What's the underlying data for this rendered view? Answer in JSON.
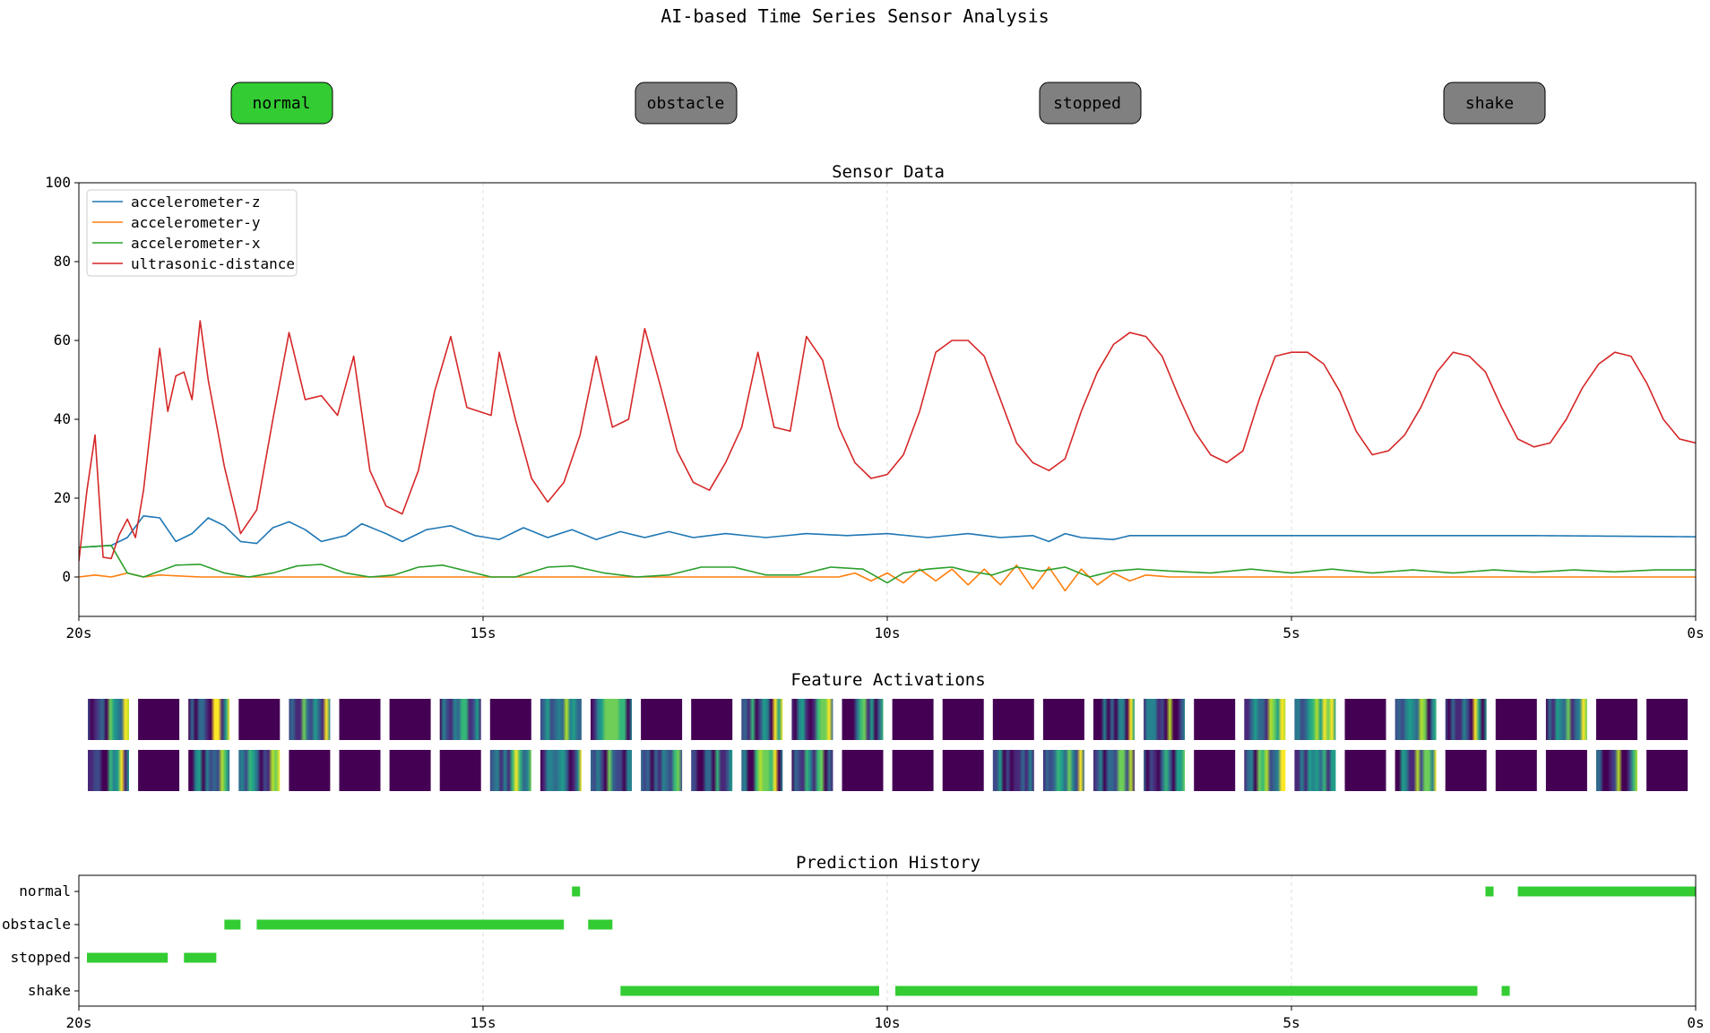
{
  "title": "AI-based Time Series Sensor Analysis",
  "buttons": [
    {
      "label": "normal",
      "active": true
    },
    {
      "label": "obstacle",
      "active": false
    },
    {
      "label": "stopped",
      "active": false
    },
    {
      "label": "shake",
      "active": false
    }
  ],
  "colors": {
    "active": "#33cc33",
    "inactive": "#808080",
    "series": [
      "#1f77b4",
      "#ff7f0e",
      "#2ca02c",
      "#d62728"
    ],
    "bar": "#33cc33"
  },
  "chart_data": [
    {
      "type": "line",
      "title": "Sensor Data",
      "xlabel": "",
      "ylabel": "",
      "xlim": [
        -20,
        0
      ],
      "ylim": [
        -10,
        100
      ],
      "x_tick_labels": [
        "20s",
        "15s",
        "10s",
        "5s",
        "0s"
      ],
      "y_tick_labels": [
        "0",
        "20",
        "40",
        "60",
        "80",
        "100"
      ],
      "y_ticks": [
        0,
        20,
        40,
        60,
        80,
        100
      ],
      "grid": "x",
      "legend": "top-left",
      "sample_step_s": 0.1,
      "series": [
        {
          "name": "accelerometer-z",
          "anchors": [
            [
              -20,
              7.5
            ],
            [
              -19.6,
              8
            ],
            [
              -19.4,
              10
            ],
            [
              -19.2,
              15.5
            ],
            [
              -19.0,
              15
            ],
            [
              -18.8,
              9
            ],
            [
              -18.6,
              11
            ],
            [
              -18.4,
              15
            ],
            [
              -18.2,
              13
            ],
            [
              -18.0,
              9
            ],
            [
              -17.8,
              8.5
            ],
            [
              -17.6,
              12.5
            ],
            [
              -17.4,
              14
            ],
            [
              -17.2,
              12
            ],
            [
              -17.0,
              9
            ],
            [
              -16.7,
              10.5
            ],
            [
              -16.5,
              13.5
            ],
            [
              -16.2,
              11
            ],
            [
              -16.0,
              9
            ],
            [
              -15.7,
              12
            ],
            [
              -15.4,
              13
            ],
            [
              -15.1,
              10.5
            ],
            [
              -14.8,
              9.5
            ],
            [
              -14.5,
              12.5
            ],
            [
              -14.2,
              10
            ],
            [
              -13.9,
              12
            ],
            [
              -13.6,
              9.5
            ],
            [
              -13.3,
              11.5
            ],
            [
              -13.0,
              10
            ],
            [
              -12.7,
              11.5
            ],
            [
              -12.4,
              10
            ],
            [
              -12.0,
              11
            ],
            [
              -11.5,
              10
            ],
            [
              -11.0,
              11
            ],
            [
              -10.5,
              10.5
            ],
            [
              -10.0,
              11
            ],
            [
              -9.5,
              10
            ],
            [
              -9.0,
              11
            ],
            [
              -8.6,
              10
            ],
            [
              -8.2,
              10.5
            ],
            [
              -8.0,
              9
            ],
            [
              -7.8,
              11
            ],
            [
              -7.6,
              10
            ],
            [
              -7.2,
              9.5
            ],
            [
              -7.0,
              10.5
            ],
            [
              -6.0,
              10.5
            ],
            [
              -4.0,
              10.5
            ],
            [
              -2.0,
              10.5
            ],
            [
              0,
              10.2
            ]
          ]
        },
        {
          "name": "accelerometer-y",
          "anchors": [
            [
              -20,
              0
            ],
            [
              -19.8,
              0.5
            ],
            [
              -19.6,
              0
            ],
            [
              -19.4,
              1
            ],
            [
              -19.2,
              0
            ],
            [
              -19.0,
              0.5
            ],
            [
              -18.5,
              0
            ],
            [
              -17.0,
              0
            ],
            [
              -15.0,
              0
            ],
            [
              -13.0,
              0
            ],
            [
              -12.0,
              0
            ],
            [
              -10.6,
              0
            ],
            [
              -10.4,
              1
            ],
            [
              -10.2,
              -1
            ],
            [
              -10.0,
              1
            ],
            [
              -9.8,
              -1.5
            ],
            [
              -9.6,
              2
            ],
            [
              -9.4,
              -1
            ],
            [
              -9.2,
              2
            ],
            [
              -9.0,
              -2
            ],
            [
              -8.8,
              2
            ],
            [
              -8.6,
              -2
            ],
            [
              -8.4,
              3
            ],
            [
              -8.2,
              -3
            ],
            [
              -8.0,
              2.5
            ],
            [
              -7.8,
              -3.5
            ],
            [
              -7.6,
              2
            ],
            [
              -7.4,
              -2
            ],
            [
              -7.2,
              1
            ],
            [
              -7.0,
              -1
            ],
            [
              -6.8,
              0.5
            ],
            [
              -6.5,
              0
            ],
            [
              -5.0,
              0
            ],
            [
              -3.0,
              0
            ],
            [
              0,
              0
            ]
          ]
        },
        {
          "name": "accelerometer-x",
          "anchors": [
            [
              -20,
              7.5
            ],
            [
              -19.6,
              8
            ],
            [
              -19.4,
              1
            ],
            [
              -19.2,
              0
            ],
            [
              -18.8,
              3
            ],
            [
              -18.5,
              3.2
            ],
            [
              -18.2,
              1
            ],
            [
              -17.9,
              0
            ],
            [
              -17.6,
              1
            ],
            [
              -17.3,
              2.8
            ],
            [
              -17.0,
              3.2
            ],
            [
              -16.7,
              1
            ],
            [
              -16.4,
              0
            ],
            [
              -16.1,
              0.5
            ],
            [
              -15.8,
              2.5
            ],
            [
              -15.5,
              3
            ],
            [
              -15.2,
              1.5
            ],
            [
              -14.9,
              0
            ],
            [
              -14.6,
              0
            ],
            [
              -14.2,
              2.5
            ],
            [
              -13.9,
              2.8
            ],
            [
              -13.5,
              1
            ],
            [
              -13.1,
              0
            ],
            [
              -12.7,
              0.5
            ],
            [
              -12.3,
              2.5
            ],
            [
              -11.9,
              2.5
            ],
            [
              -11.5,
              0.5
            ],
            [
              -11.1,
              0.5
            ],
            [
              -10.7,
              2.5
            ],
            [
              -10.3,
              2
            ],
            [
              -10.0,
              -1.5
            ],
            [
              -9.8,
              1
            ],
            [
              -9.5,
              2
            ],
            [
              -9.2,
              2.5
            ],
            [
              -9.0,
              1.5
            ],
            [
              -8.7,
              0.5
            ],
            [
              -8.4,
              2.5
            ],
            [
              -8.1,
              1.5
            ],
            [
              -7.8,
              2.5
            ],
            [
              -7.5,
              0
            ],
            [
              -7.2,
              1.5
            ],
            [
              -6.9,
              2
            ],
            [
              -6.5,
              1.5
            ],
            [
              -6.0,
              1
            ],
            [
              -5.5,
              2
            ],
            [
              -5.0,
              1
            ],
            [
              -4.5,
              2
            ],
            [
              -4.0,
              1
            ],
            [
              -3.5,
              1.8
            ],
            [
              -3.0,
              1
            ],
            [
              -2.5,
              1.8
            ],
            [
              -2.0,
              1.2
            ],
            [
              -1.5,
              1.8
            ],
            [
              -1.0,
              1.3
            ],
            [
              -0.5,
              1.8
            ],
            [
              0,
              1.8
            ]
          ]
        },
        {
          "name": "ultrasonic-distance",
          "anchors": [
            [
              -20,
              4
            ],
            [
              -19.9,
              22
            ],
            [
              -19.8,
              36
            ],
            [
              -19.7,
              5
            ],
            [
              -19.55,
              4.5
            ],
            [
              -19.45,
              17
            ],
            [
              -19.3,
              10
            ],
            [
              -19.2,
              22
            ],
            [
              -19.1,
              40
            ],
            [
              -19.0,
              58
            ],
            [
              -18.9,
              42
            ],
            [
              -18.8,
              51
            ],
            [
              -18.7,
              52
            ],
            [
              -18.6,
              45
            ],
            [
              -18.5,
              65
            ],
            [
              -18.4,
              50
            ],
            [
              -18.2,
              28
            ],
            [
              -18.0,
              11
            ],
            [
              -17.8,
              17
            ],
            [
              -17.6,
              40
            ],
            [
              -17.4,
              62
            ],
            [
              -17.2,
              45
            ],
            [
              -17.0,
              46
            ],
            [
              -16.8,
              41
            ],
            [
              -16.6,
              56
            ],
            [
              -16.4,
              27
            ],
            [
              -16.2,
              18
            ],
            [
              -16.0,
              16
            ],
            [
              -15.8,
              27
            ],
            [
              -15.6,
              47
            ],
            [
              -15.4,
              61
            ],
            [
              -15.2,
              43
            ],
            [
              -14.9,
              41
            ],
            [
              -14.8,
              57
            ],
            [
              -14.6,
              40
            ],
            [
              -14.4,
              25
            ],
            [
              -14.2,
              19
            ],
            [
              -14.0,
              24
            ],
            [
              -13.8,
              36
            ],
            [
              -13.6,
              56
            ],
            [
              -13.4,
              38
            ],
            [
              -13.2,
              40
            ],
            [
              -13.0,
              63
            ],
            [
              -12.8,
              48
            ],
            [
              -12.6,
              32
            ],
            [
              -12.4,
              24
            ],
            [
              -12.2,
              22
            ],
            [
              -12.0,
              29
            ],
            [
              -11.8,
              38
            ],
            [
              -11.6,
              57
            ],
            [
              -11.4,
              38
            ],
            [
              -11.2,
              37
            ],
            [
              -11.0,
              61
            ],
            [
              -10.8,
              55
            ],
            [
              -10.6,
              38
            ],
            [
              -10.4,
              29
            ],
            [
              -10.2,
              25
            ],
            [
              -10.0,
              26
            ],
            [
              -9.8,
              31
            ],
            [
              -9.6,
              42
            ],
            [
              -9.4,
              57
            ],
            [
              -9.2,
              60
            ],
            [
              -9.0,
              60
            ],
            [
              -8.8,
              56
            ],
            [
              -8.6,
              45
            ],
            [
              -8.4,
              34
            ],
            [
              -8.2,
              29
            ],
            [
              -8.0,
              27
            ],
            [
              -7.8,
              30
            ],
            [
              -7.6,
              42
            ],
            [
              -7.4,
              52
            ],
            [
              -7.2,
              59
            ],
            [
              -7.0,
              62
            ],
            [
              -6.8,
              61
            ],
            [
              -6.6,
              56
            ],
            [
              -6.4,
              46
            ],
            [
              -6.2,
              37
            ],
            [
              -6.0,
              31
            ],
            [
              -5.8,
              29
            ],
            [
              -5.6,
              32
            ],
            [
              -5.4,
              45
            ],
            [
              -5.2,
              56
            ],
            [
              -5.0,
              57
            ],
            [
              -4.8,
              57
            ],
            [
              -4.6,
              54
            ],
            [
              -4.4,
              47
            ],
            [
              -4.2,
              37
            ],
            [
              -4.0,
              31
            ],
            [
              -3.8,
              32
            ],
            [
              -3.6,
              36
            ],
            [
              -3.4,
              43
            ],
            [
              -3.2,
              52
            ],
            [
              -3.0,
              57
            ],
            [
              -2.8,
              56
            ],
            [
              -2.6,
              52
            ],
            [
              -2.4,
              43
            ],
            [
              -2.2,
              35
            ],
            [
              -2.0,
              33
            ],
            [
              -1.8,
              34
            ],
            [
              -1.6,
              40
            ],
            [
              -1.4,
              48
            ],
            [
              -1.2,
              54
            ],
            [
              -1.0,
              57
            ],
            [
              -0.8,
              56
            ],
            [
              -0.6,
              49
            ],
            [
              -0.4,
              40
            ],
            [
              -0.2,
              35
            ],
            [
              0,
              34
            ]
          ]
        }
      ]
    },
    {
      "type": "bar",
      "title": "Prediction History",
      "xlim": [
        -20,
        0
      ],
      "categories": [
        "normal",
        "obstacle",
        "stopped",
        "shake"
      ],
      "x_tick_labels": [
        "20s",
        "15s",
        "10s",
        "5s",
        "0s"
      ],
      "grid": "x",
      "segments": [
        {
          "label": "stopped",
          "start": -19.9,
          "end": -18.9
        },
        {
          "label": "stopped",
          "start": -18.7,
          "end": -18.3
        },
        {
          "label": "obstacle",
          "start": -18.2,
          "end": -18.0
        },
        {
          "label": "obstacle",
          "start": -17.8,
          "end": -14.0
        },
        {
          "label": "normal",
          "start": -13.9,
          "end": -13.8
        },
        {
          "label": "obstacle",
          "start": -13.7,
          "end": -13.4
        },
        {
          "label": "shake",
          "start": -13.3,
          "end": -10.1
        },
        {
          "label": "shake",
          "start": -9.9,
          "end": -2.7
        },
        {
          "label": "normal",
          "start": -2.6,
          "end": -2.5
        },
        {
          "label": "shake",
          "start": -2.4,
          "end": -2.3
        },
        {
          "label": "normal",
          "start": -2.2,
          "end": 0
        }
      ]
    }
  ],
  "feature_activations": {
    "title": "Feature Activations",
    "rows": 2,
    "columns": 32
  }
}
